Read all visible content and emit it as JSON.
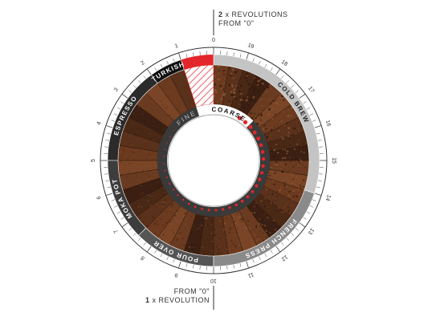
{
  "top_note": {
    "count": "2",
    "text": "x REVOLUTIONS",
    "line2": "FROM \"0\""
  },
  "bottom_note": {
    "line1": "FROM \"0\"",
    "count": "1",
    "text": "x REVOLUTION"
  },
  "dial": {
    "numbers": [
      "0",
      "1",
      "2",
      "3",
      "4",
      "5",
      "6",
      "7",
      "8",
      "9",
      "10",
      "11",
      "12",
      "13",
      "14",
      "15",
      "16",
      "17",
      "18",
      "19"
    ]
  },
  "grind": {
    "fine": "FINE",
    "coarse": "COARSE"
  },
  "methods": [
    {
      "label": "TURKISH"
    },
    {
      "label": "ESPRESSO"
    },
    {
      "label": "MOKA POT"
    },
    {
      "label": "POUR OVER"
    },
    {
      "label": "FRENCH PRESS"
    },
    {
      "label": "COLD BREW"
    }
  ]
}
